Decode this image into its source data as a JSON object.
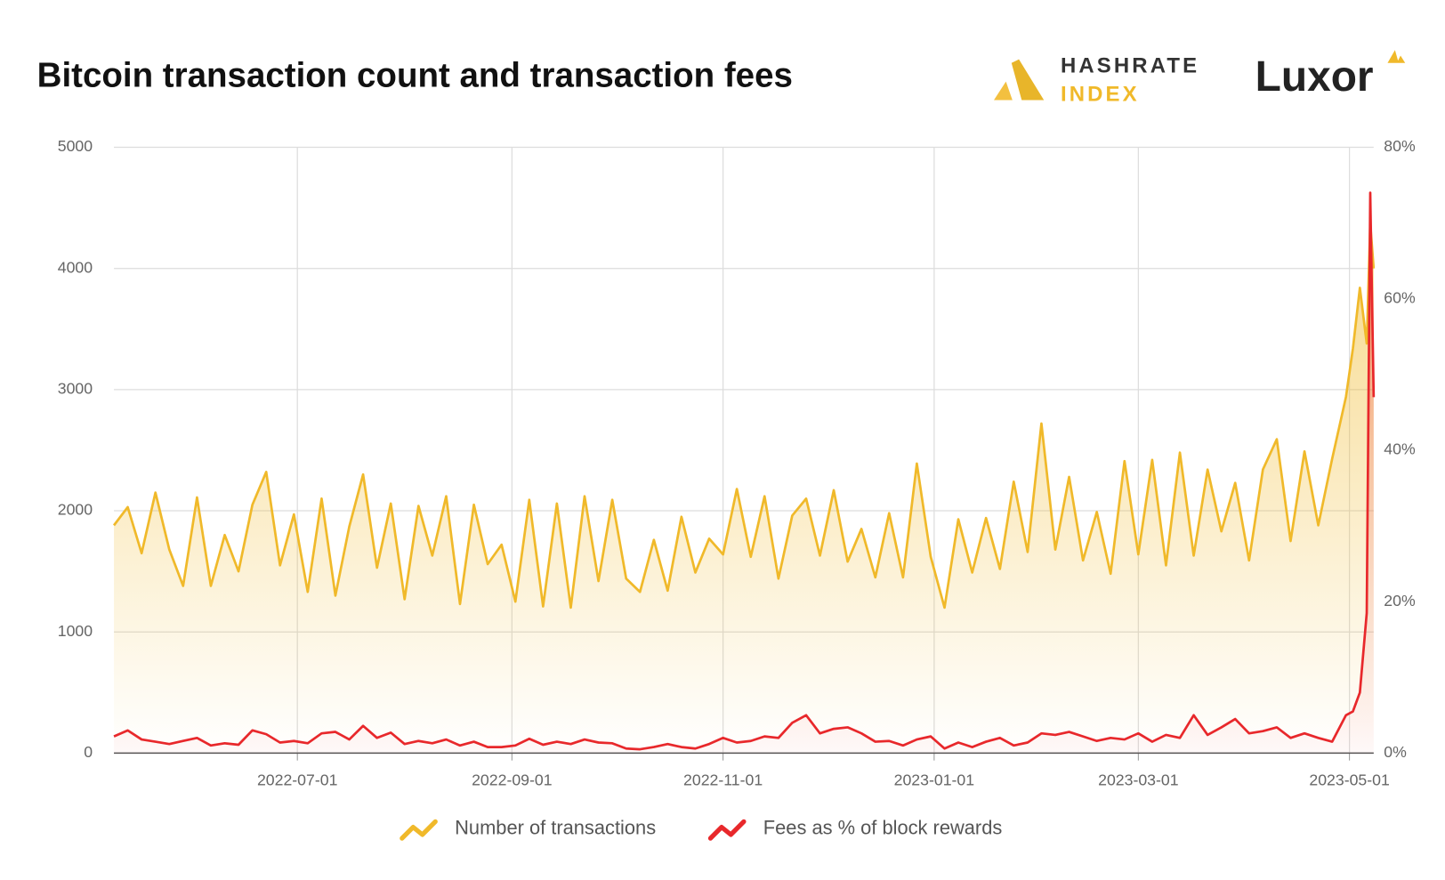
{
  "brand": {
    "hashrate": "HASHRATE",
    "index": "INDEX",
    "luxor": "Luxor"
  },
  "chart_data": {
    "type": "line",
    "title": "Bitcoin transaction count and transaction fees",
    "x": [
      "2022-05-09",
      "2022-05-13",
      "2022-05-17",
      "2022-05-21",
      "2022-05-25",
      "2022-05-29",
      "2022-06-02",
      "2022-06-06",
      "2022-06-10",
      "2022-06-14",
      "2022-06-18",
      "2022-06-22",
      "2022-06-26",
      "2022-06-30",
      "2022-07-04",
      "2022-07-08",
      "2022-07-12",
      "2022-07-16",
      "2022-07-20",
      "2022-07-24",
      "2022-07-28",
      "2022-08-01",
      "2022-08-05",
      "2022-08-09",
      "2022-08-13",
      "2022-08-17",
      "2022-08-21",
      "2022-08-25",
      "2022-08-29",
      "2022-09-02",
      "2022-09-06",
      "2022-09-10",
      "2022-09-14",
      "2022-09-18",
      "2022-09-22",
      "2022-09-26",
      "2022-09-30",
      "2022-10-04",
      "2022-10-08",
      "2022-10-12",
      "2022-10-16",
      "2022-10-20",
      "2022-10-24",
      "2022-10-28",
      "2022-11-01",
      "2022-11-05",
      "2022-11-09",
      "2022-11-13",
      "2022-11-17",
      "2022-11-21",
      "2022-11-25",
      "2022-11-29",
      "2022-12-03",
      "2022-12-07",
      "2022-12-11",
      "2022-12-15",
      "2022-12-19",
      "2022-12-23",
      "2022-12-27",
      "2022-12-31",
      "2023-01-04",
      "2023-01-08",
      "2023-01-12",
      "2023-01-16",
      "2023-01-20",
      "2023-01-24",
      "2023-01-28",
      "2023-02-01",
      "2023-02-05",
      "2023-02-09",
      "2023-02-13",
      "2023-02-17",
      "2023-02-21",
      "2023-02-25",
      "2023-03-01",
      "2023-03-05",
      "2023-03-09",
      "2023-03-13",
      "2023-03-17",
      "2023-03-21",
      "2023-03-25",
      "2023-03-29",
      "2023-04-02",
      "2023-04-06",
      "2023-04-10",
      "2023-04-14",
      "2023-04-18",
      "2023-04-22",
      "2023-04-26",
      "2023-04-30",
      "2023-05-02",
      "2023-05-04",
      "2023-05-06",
      "2023-05-07",
      "2023-05-08"
    ],
    "xlim": [
      "2022-05-09",
      "2023-05-08"
    ],
    "xticks": [
      "2022-07-01",
      "2022-09-01",
      "2022-11-01",
      "2023-01-01",
      "2023-03-01",
      "2023-05-01"
    ],
    "ylim": [
      0,
      5000
    ],
    "yticks": [
      0,
      1000,
      2000,
      3000,
      4000,
      5000
    ],
    "y2lim": [
      0,
      80
    ],
    "y2ticks": [
      {
        "value": 0,
        "label": "0%"
      },
      {
        "value": 20,
        "label": "20%"
      },
      {
        "value": 40,
        "label": "40%"
      },
      {
        "value": 60,
        "label": "60%"
      },
      {
        "value": 80,
        "label": "80%"
      }
    ],
    "grid": true,
    "series": [
      {
        "name": "Number of transactions",
        "color": "#f0b92a",
        "values": [
          1880,
          2030,
          1650,
          2150,
          1680,
          1380,
          2110,
          1380,
          1800,
          1500,
          2050,
          2320,
          1550,
          1970,
          1330,
          2100,
          1300,
          1870,
          2300,
          1530,
          2060,
          1270,
          2040,
          1630,
          2120,
          1230,
          2050,
          1560,
          1720,
          1250,
          2090,
          1210,
          2060,
          1200,
          2120,
          1420,
          2090,
          1440,
          1330,
          1760,
          1340,
          1950,
          1490,
          1770,
          1640,
          2180,
          1620,
          2120,
          1440,
          1960,
          2100,
          1630,
          2170,
          1580,
          1850,
          1450,
          1980,
          1450,
          2390,
          1620,
          1200,
          1930,
          1490,
          1940,
          1520,
          2240,
          1660,
          2720,
          1680,
          2280,
          1590,
          1990,
          1480,
          2410,
          1640,
          2420,
          1550,
          2480,
          1630,
          2340,
          1830,
          2230,
          1590,
          2340,
          2590,
          1750,
          2490,
          1880,
          2430,
          2940,
          3340,
          3840,
          3380,
          4370,
          4000
        ]
      },
      {
        "name": "Fees as % of block rewards",
        "color": "#e8282b",
        "axis": "y2",
        "values": [
          2.2,
          3.0,
          1.8,
          1.5,
          1.2,
          1.6,
          2.0,
          1.0,
          1.3,
          1.1,
          3.0,
          2.5,
          1.4,
          1.6,
          1.3,
          2.6,
          2.8,
          1.8,
          3.6,
          2.0,
          2.7,
          1.2,
          1.6,
          1.3,
          1.8,
          1.0,
          1.5,
          0.8,
          0.8,
          1.0,
          1.9,
          1.1,
          1.5,
          1.2,
          1.8,
          1.4,
          1.3,
          0.6,
          0.5,
          0.8,
          1.2,
          0.8,
          0.6,
          1.2,
          2.0,
          1.4,
          1.6,
          2.2,
          2.0,
          4.0,
          5.0,
          2.6,
          3.2,
          3.4,
          2.6,
          1.5,
          1.6,
          1.0,
          1.8,
          2.2,
          0.6,
          1.4,
          0.8,
          1.5,
          2.0,
          1.0,
          1.4,
          2.6,
          2.4,
          2.8,
          2.2,
          1.6,
          2.0,
          1.8,
          2.6,
          1.5,
          2.4,
          2.0,
          5.0,
          2.4,
          3.4,
          4.5,
          2.6,
          2.9,
          3.4,
          2.0,
          2.6,
          2.0,
          1.5,
          5.0,
          5.5,
          8.0,
          18.5,
          74.0,
          47.0
        ]
      }
    ],
    "legend": "bottom"
  }
}
